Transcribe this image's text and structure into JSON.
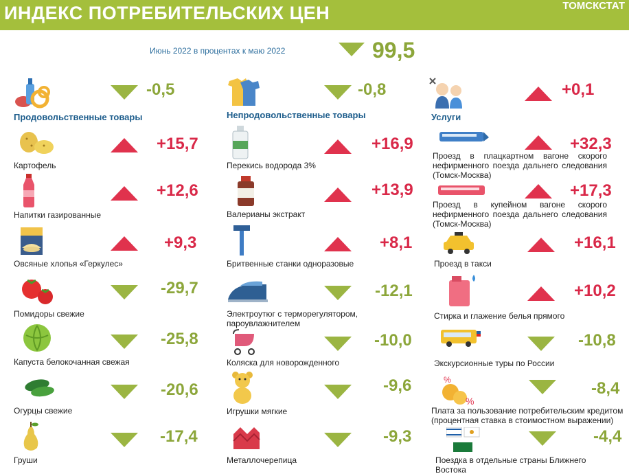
{
  "header": {
    "title": "ИНДЕКС ПОТРЕБИТЕЛЬСКИХ ЦЕН",
    "brand": "ТОМСКСТАТ"
  },
  "subtitle": "Июнь 2022 в процентах к маю 2022",
  "total": {
    "value": "99,5",
    "direction": "down"
  },
  "colors": {
    "header": "#a4bf3c",
    "up": "#e0324d",
    "down": "#9bb542",
    "category": "#1d5d8c"
  },
  "columns": [
    {
      "category": {
        "label": "Продовольственные товары",
        "value": "-0,5",
        "direction": "down",
        "icon": "food-icon"
      },
      "items": [
        {
          "label": "Картофель",
          "value": "+15,7",
          "direction": "up",
          "icon": "potato-icon"
        },
        {
          "label": "Напитки газированные",
          "value": "+12,6",
          "direction": "up",
          "icon": "soda-bottle-icon"
        },
        {
          "label": "Овсяные хлопья «Геркулес»",
          "value": "+9,3",
          "direction": "up",
          "icon": "oat-box-icon"
        },
        {
          "label": "Помидоры свежие",
          "value": "-29,7",
          "direction": "down",
          "icon": "tomato-icon"
        },
        {
          "label": "Капуста белокочанная свежая",
          "value": "-25,8",
          "direction": "down",
          "icon": "cabbage-icon"
        },
        {
          "label": "Огурцы свежие",
          "value": "-20,6",
          "direction": "down",
          "icon": "cucumber-icon"
        },
        {
          "label": "Груши",
          "value": "-17,4",
          "direction": "down",
          "icon": "pear-icon"
        }
      ]
    },
    {
      "category": {
        "label": "Непродовольственные товары",
        "value": "-0,8",
        "direction": "down",
        "icon": "clothes-icon"
      },
      "items": [
        {
          "label": "Перекись водорода 3%",
          "value": "+16,9",
          "direction": "up",
          "icon": "bottle-icon"
        },
        {
          "label": "Валерианы экстракт",
          "value": "+13,9",
          "direction": "up",
          "icon": "medicine-jar-icon"
        },
        {
          "label": "Бритвенные станки одноразовые",
          "value": "+8,1",
          "direction": "up",
          "icon": "razor-icon"
        },
        {
          "label": "Электроутюг с терморегулятором, пароувлажнителем",
          "value": "-12,1",
          "direction": "down",
          "icon": "iron-icon"
        },
        {
          "label": "Коляска для новорожденного",
          "value": "-10,0",
          "direction": "down",
          "icon": "stroller-icon"
        },
        {
          "label": "Игрушки мягкие",
          "value": "-9,6",
          "direction": "down",
          "icon": "teddy-bear-icon"
        },
        {
          "label": "Металлочерепица",
          "value": "-9,3",
          "direction": "down",
          "icon": "roof-tile-icon"
        }
      ]
    },
    {
      "category": {
        "label": "Услуги",
        "value": "+0,1",
        "direction": "up",
        "icon": "services-icon"
      },
      "items": [
        {
          "label": "Проезд в плацкартном вагоне скорого нефирменного поезда дальнего следования (Томск-Москва)",
          "value": "+32,3",
          "direction": "up",
          "icon": "train-icon"
        },
        {
          "label": "Проезд в купейном вагоне скорого нефирменного поезда дальнего следования (Томск-Москва)",
          "value": "+17,3",
          "direction": "up",
          "icon": "train-icon"
        },
        {
          "label": "Проезд в такси",
          "value": "+16,1",
          "direction": "up",
          "icon": "taxi-icon"
        },
        {
          "label": "Стирка и глажение белья прямого",
          "value": "+10,2",
          "direction": "up",
          "icon": "detergent-icon"
        },
        {
          "label": "Экскурсионные туры по России",
          "value": "-10,8",
          "direction": "down",
          "icon": "bus-icon"
        },
        {
          "label": "Плата за пользование потребительским кредитом (процентная ставка в стоимостном выражении)",
          "value": "-8,4",
          "direction": "down",
          "icon": "coins-percent-icon"
        },
        {
          "label": "Поездка в отдельные страны Ближнего Востока",
          "value": "-4,4",
          "direction": "down",
          "icon": "flags-icon"
        }
      ]
    }
  ]
}
